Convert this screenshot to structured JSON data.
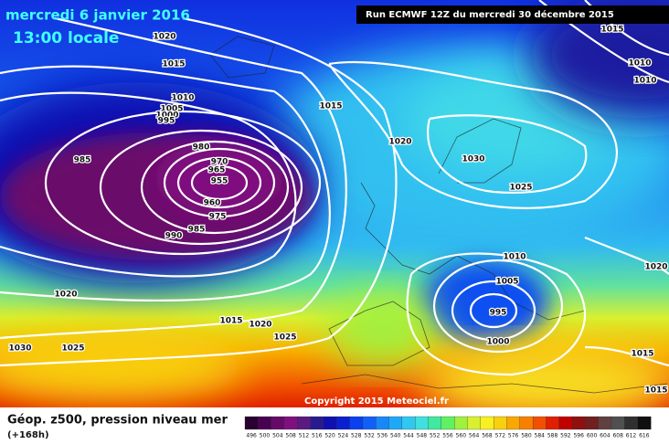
{
  "header": {
    "date": "mercredi 6 janvier 2016",
    "time": "13:00 locale",
    "run": "Run ECMWF 12Z du mercredi 30 décembre 2015"
  },
  "copyright": "Copyright 2015 Meteociel.fr",
  "footer": {
    "title": "Géop. z500, pression niveau mer",
    "lead": "(+168h)"
  },
  "isobar_labels": [
    "1020",
    "1015",
    "1010",
    "1005",
    "1000",
    "995",
    "985",
    "980",
    "970",
    "965",
    "955",
    "960",
    "975",
    "985",
    "990",
    "1015",
    "1020",
    "1030",
    "1025",
    "1015",
    "1010",
    "1010",
    "1010",
    "1005",
    "995",
    "1000",
    "1020",
    "1015",
    "1020",
    "1025",
    "1030",
    "1025",
    "1020",
    "1015",
    "1015"
  ],
  "legend": {
    "labels": [
      "496",
      "500",
      "504",
      "508",
      "512",
      "516",
      "520",
      "524",
      "528",
      "532",
      "536",
      "540",
      "544",
      "548",
      "552",
      "556",
      "560",
      "564",
      "568",
      "572",
      "576",
      "580",
      "584",
      "588",
      "592",
      "596",
      "600",
      "604",
      "608",
      "612",
      "616"
    ],
    "colors": [
      "#2a0030",
      "#4a0050",
      "#660a6a",
      "#801080",
      "#5a1a80",
      "#2a1a90",
      "#1010b0",
      "#0a20d0",
      "#0a40f0",
      "#1060f8",
      "#1888f8",
      "#20a8f8",
      "#30c8f0",
      "#40e0e0",
      "#40e8a0",
      "#60f060",
      "#a0f040",
      "#d8f030",
      "#f8f020",
      "#f8d010",
      "#f8a800",
      "#f88000",
      "#f05000",
      "#e02000",
      "#c00000",
      "#901010",
      "#702020",
      "#604040",
      "#505050",
      "#303030",
      "#101010"
    ]
  }
}
